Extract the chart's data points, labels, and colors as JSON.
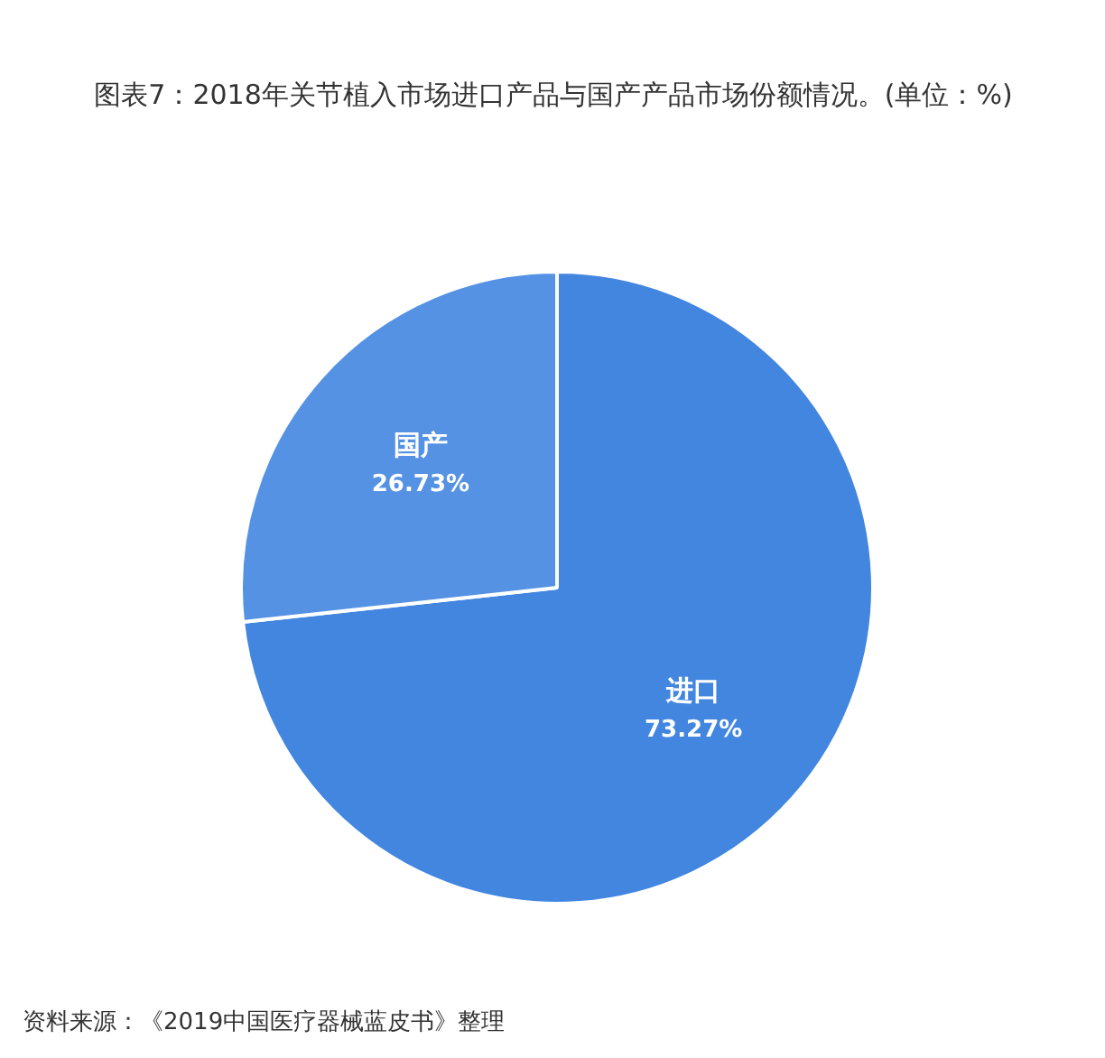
{
  "chart_data": {
    "type": "pie",
    "title": "图表7：2018年关节植入市场进口产品与国产产品市场份额情况。(单位：%)",
    "categories": [
      "进口",
      "国产"
    ],
    "values": [
      73.27,
      26.73
    ],
    "colors": [
      "#4286e0",
      "#5592e4"
    ],
    "value_labels": [
      "73.27%",
      "26.73%"
    ],
    "annotations": [
      "资料来源：《2019中国医疗器械蓝皮书》整理"
    ]
  }
}
